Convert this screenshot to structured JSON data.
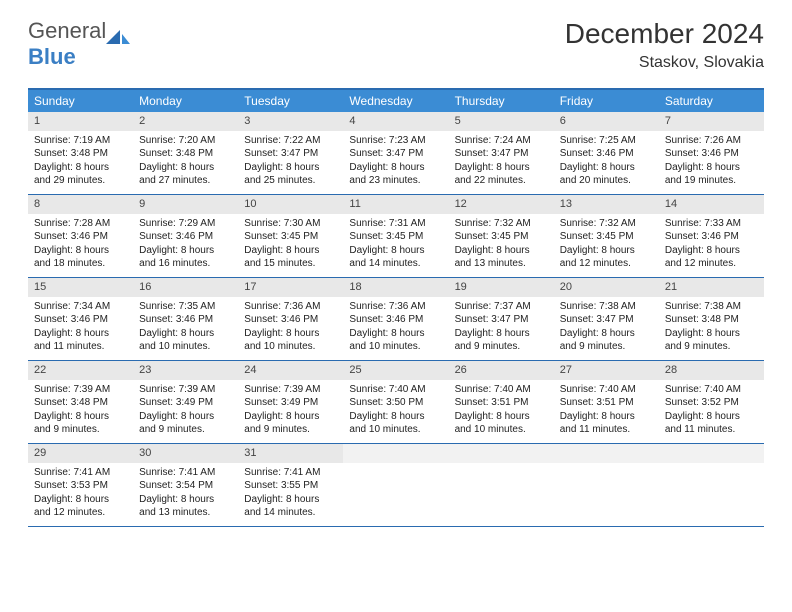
{
  "brand": {
    "general": "General",
    "blue": "Blue"
  },
  "title": "December 2024",
  "location": "Staskov, Slovakia",
  "colors": {
    "header_bg": "#3b8cd4",
    "border": "#2a6bb0",
    "daynum_bg": "#e8e8e8",
    "text": "#222222",
    "brand_blue": "#3b7fc4"
  },
  "weekdays": [
    "Sunday",
    "Monday",
    "Tuesday",
    "Wednesday",
    "Thursday",
    "Friday",
    "Saturday"
  ],
  "weeks": [
    [
      {
        "n": "1",
        "sr": "Sunrise: 7:19 AM",
        "ss": "Sunset: 3:48 PM",
        "dl1": "Daylight: 8 hours",
        "dl2": "and 29 minutes."
      },
      {
        "n": "2",
        "sr": "Sunrise: 7:20 AM",
        "ss": "Sunset: 3:48 PM",
        "dl1": "Daylight: 8 hours",
        "dl2": "and 27 minutes."
      },
      {
        "n": "3",
        "sr": "Sunrise: 7:22 AM",
        "ss": "Sunset: 3:47 PM",
        "dl1": "Daylight: 8 hours",
        "dl2": "and 25 minutes."
      },
      {
        "n": "4",
        "sr": "Sunrise: 7:23 AM",
        "ss": "Sunset: 3:47 PM",
        "dl1": "Daylight: 8 hours",
        "dl2": "and 23 minutes."
      },
      {
        "n": "5",
        "sr": "Sunrise: 7:24 AM",
        "ss": "Sunset: 3:47 PM",
        "dl1": "Daylight: 8 hours",
        "dl2": "and 22 minutes."
      },
      {
        "n": "6",
        "sr": "Sunrise: 7:25 AM",
        "ss": "Sunset: 3:46 PM",
        "dl1": "Daylight: 8 hours",
        "dl2": "and 20 minutes."
      },
      {
        "n": "7",
        "sr": "Sunrise: 7:26 AM",
        "ss": "Sunset: 3:46 PM",
        "dl1": "Daylight: 8 hours",
        "dl2": "and 19 minutes."
      }
    ],
    [
      {
        "n": "8",
        "sr": "Sunrise: 7:28 AM",
        "ss": "Sunset: 3:46 PM",
        "dl1": "Daylight: 8 hours",
        "dl2": "and 18 minutes."
      },
      {
        "n": "9",
        "sr": "Sunrise: 7:29 AM",
        "ss": "Sunset: 3:46 PM",
        "dl1": "Daylight: 8 hours",
        "dl2": "and 16 minutes."
      },
      {
        "n": "10",
        "sr": "Sunrise: 7:30 AM",
        "ss": "Sunset: 3:45 PM",
        "dl1": "Daylight: 8 hours",
        "dl2": "and 15 minutes."
      },
      {
        "n": "11",
        "sr": "Sunrise: 7:31 AM",
        "ss": "Sunset: 3:45 PM",
        "dl1": "Daylight: 8 hours",
        "dl2": "and 14 minutes."
      },
      {
        "n": "12",
        "sr": "Sunrise: 7:32 AM",
        "ss": "Sunset: 3:45 PM",
        "dl1": "Daylight: 8 hours",
        "dl2": "and 13 minutes."
      },
      {
        "n": "13",
        "sr": "Sunrise: 7:32 AM",
        "ss": "Sunset: 3:45 PM",
        "dl1": "Daylight: 8 hours",
        "dl2": "and 12 minutes."
      },
      {
        "n": "14",
        "sr": "Sunrise: 7:33 AM",
        "ss": "Sunset: 3:46 PM",
        "dl1": "Daylight: 8 hours",
        "dl2": "and 12 minutes."
      }
    ],
    [
      {
        "n": "15",
        "sr": "Sunrise: 7:34 AM",
        "ss": "Sunset: 3:46 PM",
        "dl1": "Daylight: 8 hours",
        "dl2": "and 11 minutes."
      },
      {
        "n": "16",
        "sr": "Sunrise: 7:35 AM",
        "ss": "Sunset: 3:46 PM",
        "dl1": "Daylight: 8 hours",
        "dl2": "and 10 minutes."
      },
      {
        "n": "17",
        "sr": "Sunrise: 7:36 AM",
        "ss": "Sunset: 3:46 PM",
        "dl1": "Daylight: 8 hours",
        "dl2": "and 10 minutes."
      },
      {
        "n": "18",
        "sr": "Sunrise: 7:36 AM",
        "ss": "Sunset: 3:46 PM",
        "dl1": "Daylight: 8 hours",
        "dl2": "and 10 minutes."
      },
      {
        "n": "19",
        "sr": "Sunrise: 7:37 AM",
        "ss": "Sunset: 3:47 PM",
        "dl1": "Daylight: 8 hours",
        "dl2": "and 9 minutes."
      },
      {
        "n": "20",
        "sr": "Sunrise: 7:38 AM",
        "ss": "Sunset: 3:47 PM",
        "dl1": "Daylight: 8 hours",
        "dl2": "and 9 minutes."
      },
      {
        "n": "21",
        "sr": "Sunrise: 7:38 AM",
        "ss": "Sunset: 3:48 PM",
        "dl1": "Daylight: 8 hours",
        "dl2": "and 9 minutes."
      }
    ],
    [
      {
        "n": "22",
        "sr": "Sunrise: 7:39 AM",
        "ss": "Sunset: 3:48 PM",
        "dl1": "Daylight: 8 hours",
        "dl2": "and 9 minutes."
      },
      {
        "n": "23",
        "sr": "Sunrise: 7:39 AM",
        "ss": "Sunset: 3:49 PM",
        "dl1": "Daylight: 8 hours",
        "dl2": "and 9 minutes."
      },
      {
        "n": "24",
        "sr": "Sunrise: 7:39 AM",
        "ss": "Sunset: 3:49 PM",
        "dl1": "Daylight: 8 hours",
        "dl2": "and 9 minutes."
      },
      {
        "n": "25",
        "sr": "Sunrise: 7:40 AM",
        "ss": "Sunset: 3:50 PM",
        "dl1": "Daylight: 8 hours",
        "dl2": "and 10 minutes."
      },
      {
        "n": "26",
        "sr": "Sunrise: 7:40 AM",
        "ss": "Sunset: 3:51 PM",
        "dl1": "Daylight: 8 hours",
        "dl2": "and 10 minutes."
      },
      {
        "n": "27",
        "sr": "Sunrise: 7:40 AM",
        "ss": "Sunset: 3:51 PM",
        "dl1": "Daylight: 8 hours",
        "dl2": "and 11 minutes."
      },
      {
        "n": "28",
        "sr": "Sunrise: 7:40 AM",
        "ss": "Sunset: 3:52 PM",
        "dl1": "Daylight: 8 hours",
        "dl2": "and 11 minutes."
      }
    ],
    [
      {
        "n": "29",
        "sr": "Sunrise: 7:41 AM",
        "ss": "Sunset: 3:53 PM",
        "dl1": "Daylight: 8 hours",
        "dl2": "and 12 minutes."
      },
      {
        "n": "30",
        "sr": "Sunrise: 7:41 AM",
        "ss": "Sunset: 3:54 PM",
        "dl1": "Daylight: 8 hours",
        "dl2": "and 13 minutes."
      },
      {
        "n": "31",
        "sr": "Sunrise: 7:41 AM",
        "ss": "Sunset: 3:55 PM",
        "dl1": "Daylight: 8 hours",
        "dl2": "and 14 minutes."
      },
      {
        "empty": true
      },
      {
        "empty": true
      },
      {
        "empty": true
      },
      {
        "empty": true
      }
    ]
  ]
}
